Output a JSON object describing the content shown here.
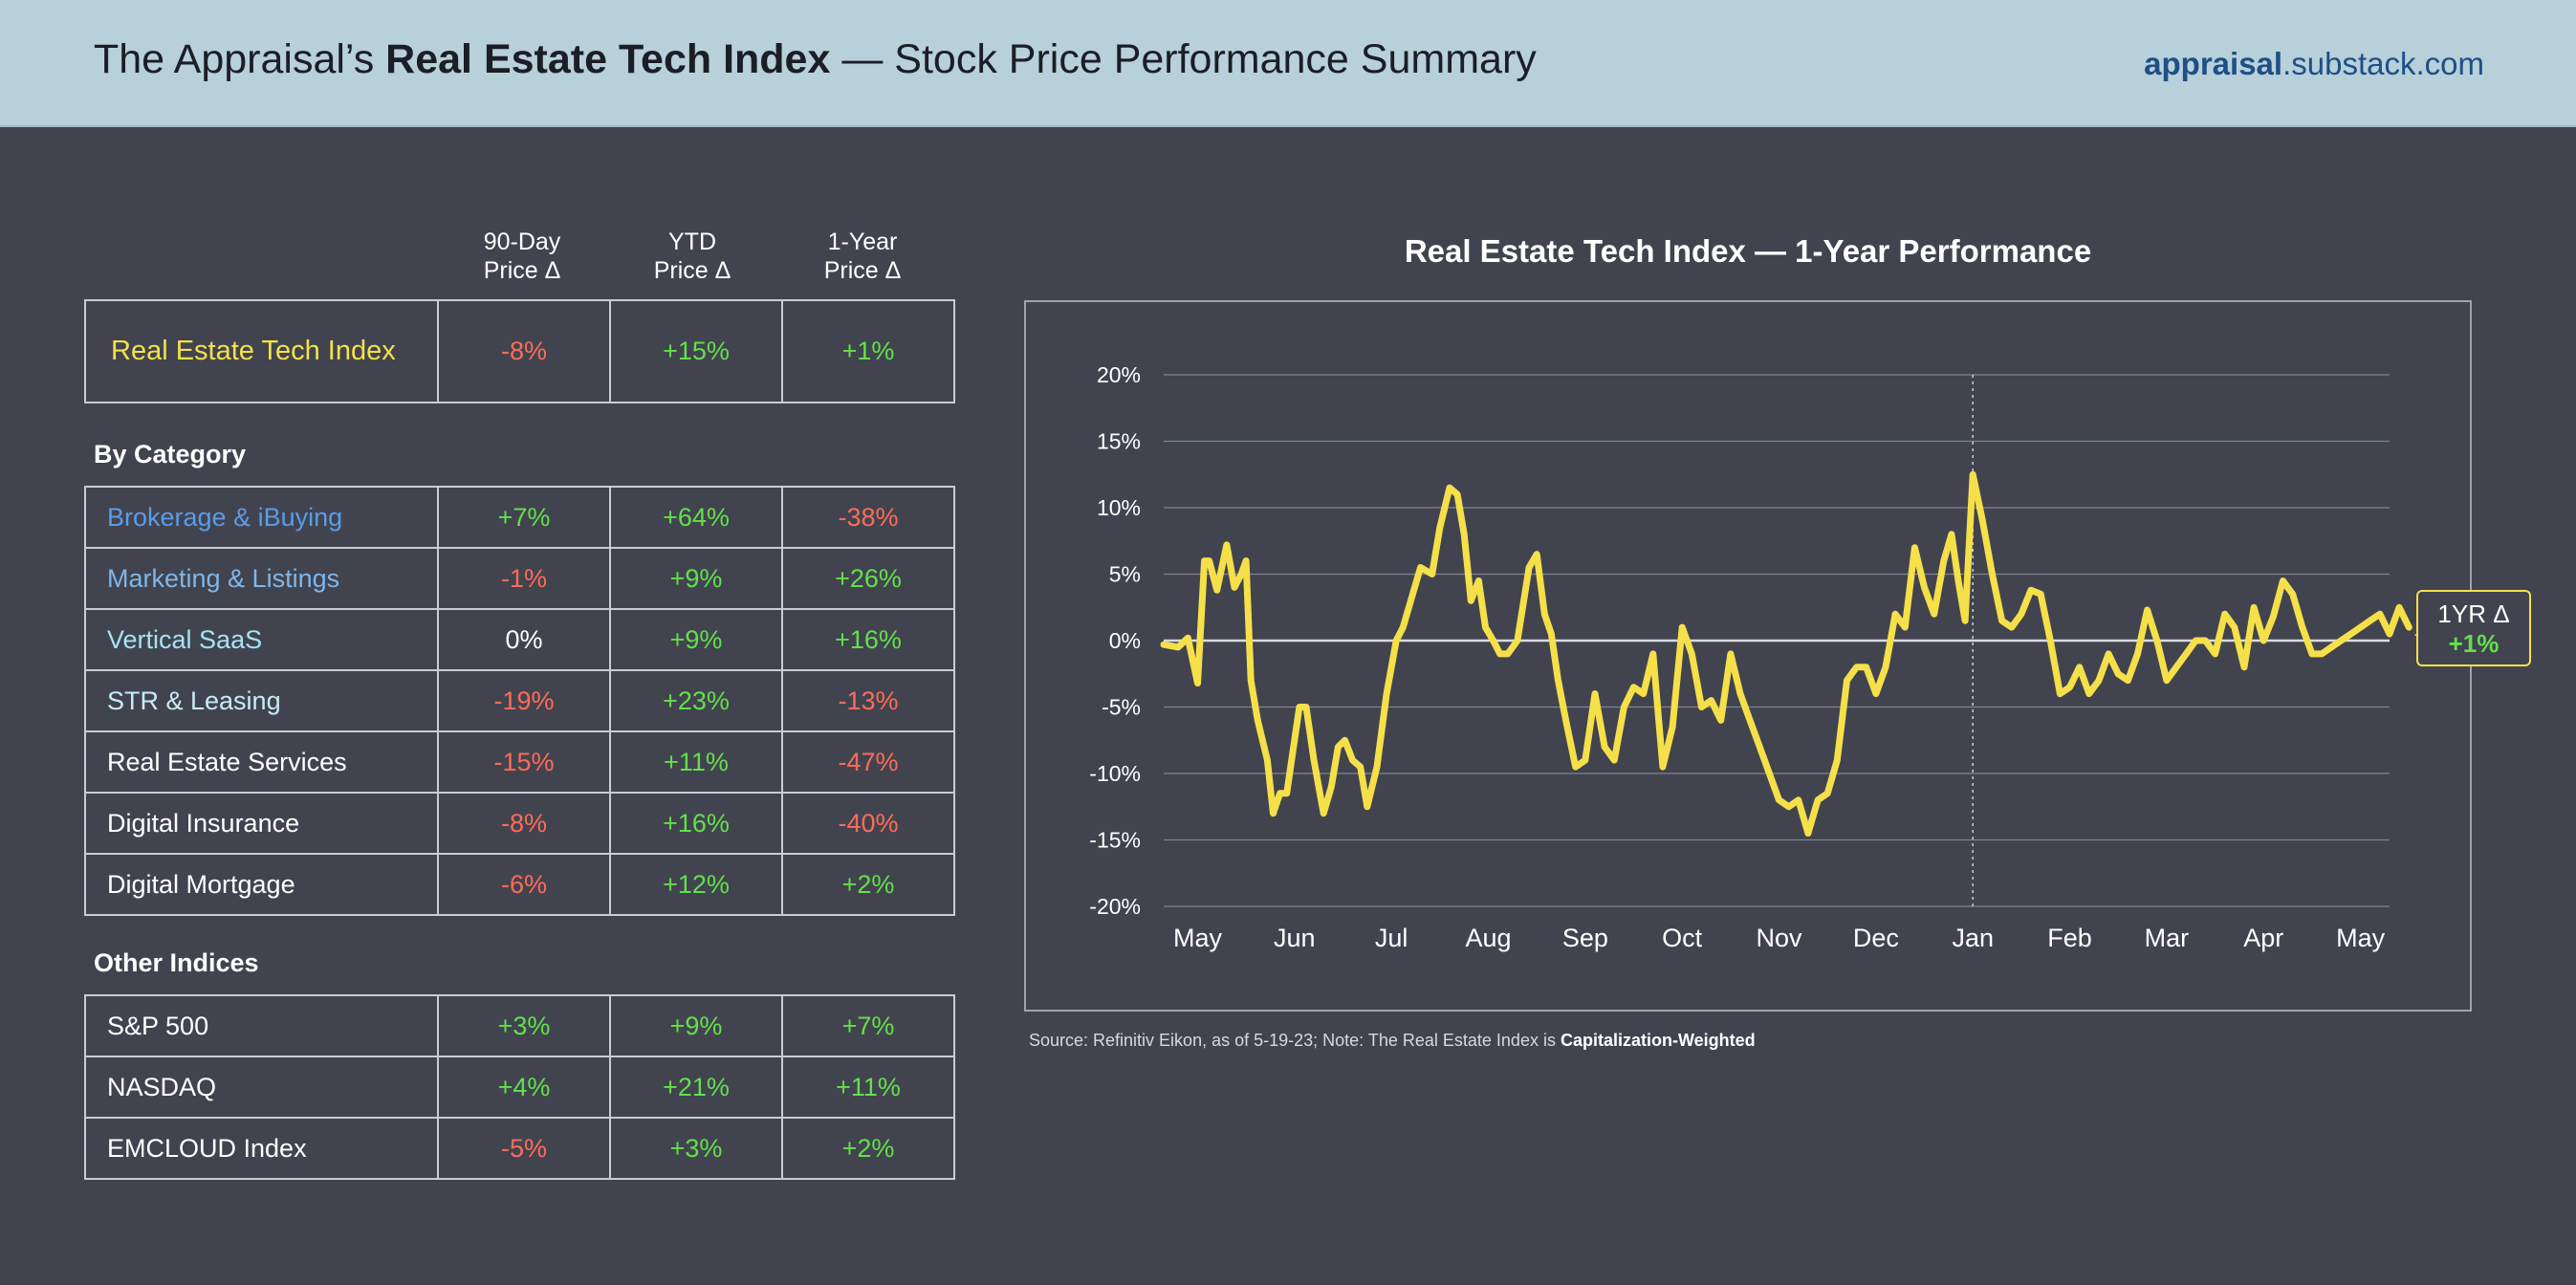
{
  "header": {
    "title_prefix": "The Appraisal’s ",
    "title_bold": "Real Estate Tech Index",
    "title_suffix": " — Stock Price Performance Summary",
    "brand_bold": "appraisal",
    "brand_rest": ".substack.com"
  },
  "table": {
    "columns": [
      {
        "line1": "90-Day",
        "line2": "Price Δ"
      },
      {
        "line1": "YTD",
        "line2": "Price Δ"
      },
      {
        "line1": "1-Year",
        "line2": "Price Δ"
      }
    ],
    "index_row": {
      "name": "Real Estate Tech Index",
      "color": "#f5e04a",
      "values": [
        "-8%",
        "+15%",
        "+1%"
      ]
    },
    "by_category_label": "By Category",
    "categories": [
      {
        "name": "Brokerage & iBuying",
        "color": "#5b9ce8",
        "values": [
          "+7%",
          "+64%",
          "-38%"
        ]
      },
      {
        "name": "Marketing & Listings",
        "color": "#7fb6ea",
        "values": [
          "-1%",
          "+9%",
          "+26%"
        ]
      },
      {
        "name": "Vertical SaaS",
        "color": "#a6e3f2",
        "values": [
          "0%",
          "+9%",
          "+16%"
        ]
      },
      {
        "name": "STR & Leasing",
        "color": "#c7ecf5",
        "values": [
          "-19%",
          "+23%",
          "-13%"
        ]
      },
      {
        "name": "Real Estate Services",
        "color": "#ffffff",
        "values": [
          "-15%",
          "+11%",
          "-47%"
        ]
      },
      {
        "name": "Digital Insurance",
        "color": "#ffffff",
        "values": [
          "-8%",
          "+16%",
          "-40%"
        ]
      },
      {
        "name": "Digital Mortgage",
        "color": "#ffffff",
        "values": [
          "-6%",
          "+12%",
          "+2%"
        ]
      }
    ],
    "other_indices_label": "Other Indices",
    "other_indices": [
      {
        "name": "S&P 500",
        "color": "#ffffff",
        "values": [
          "+3%",
          "+9%",
          "+7%"
        ]
      },
      {
        "name": "NASDAQ",
        "color": "#ffffff",
        "values": [
          "+4%",
          "+21%",
          "+11%"
        ]
      },
      {
        "name": "EMCLOUD Index",
        "color": "#ffffff",
        "values": [
          "-5%",
          "+3%",
          "+2%"
        ]
      }
    ]
  },
  "colors": {
    "positive": "#63e04a",
    "negative": "#ff6b57",
    "neutral": "#ffffff",
    "line": "#f5e04a",
    "background": "#41444f",
    "header_bg": "#b8d0d9",
    "brand": "#1e4f86"
  },
  "chart_data": {
    "type": "line",
    "title": "Real Estate Tech Index — 1-Year Performance",
    "xlabel": "",
    "ylabel": "",
    "ylim": [
      -20,
      20
    ],
    "yticks": [
      "20%",
      "15%",
      "10%",
      "5%",
      "0%",
      "-5%",
      "-10%",
      "-15%",
      "-20%"
    ],
    "xticks": [
      "May",
      "Jun",
      "Jul",
      "Aug",
      "Sep",
      "Oct",
      "Nov",
      "Dec",
      "Jan",
      "Feb",
      "Mar",
      "Apr",
      "May"
    ],
    "grid": true,
    "year_divider": "Jan",
    "series": [
      {
        "color": "#f5e04a",
        "x": [
          -0.35,
          -0.2,
          -0.1,
          0.0,
          0.07,
          0.12,
          0.2,
          0.3,
          0.38,
          0.45,
          0.5,
          0.55,
          0.62,
          0.72,
          0.78,
          0.85,
          0.92,
          1.0,
          1.05,
          1.12,
          1.2,
          1.3,
          1.38,
          1.45,
          1.52,
          1.6,
          1.68,
          1.75,
          1.85,
          1.95,
          2.05,
          2.12,
          2.2,
          2.3,
          2.42,
          2.5,
          2.6,
          2.68,
          2.75,
          2.82,
          2.9,
          2.97,
          3.05,
          3.12,
          3.2,
          3.3,
          3.42,
          3.5,
          3.58,
          3.65,
          3.72,
          3.8,
          3.9,
          4.0,
          4.1,
          4.2,
          4.3,
          4.4,
          4.5,
          4.6,
          4.7,
          4.8,
          4.9,
          5.0,
          5.1,
          5.2,
          5.3,
          5.4,
          5.5,
          5.6,
          5.7,
          5.8,
          5.9,
          6.0,
          6.1,
          6.2,
          6.3,
          6.4,
          6.5,
          6.6,
          6.7,
          6.8,
          6.9,
          7.0,
          7.1,
          7.2,
          7.3,
          7.4,
          7.5,
          7.6,
          7.7,
          7.78,
          7.85,
          7.92,
          8.0,
          8.1,
          8.2,
          8.3,
          8.4,
          8.5,
          8.6,
          8.7,
          8.8,
          8.9,
          9.0,
          9.1,
          9.2,
          9.3,
          9.4,
          9.5,
          9.6,
          9.7,
          9.8,
          9.9,
          10.0,
          10.1,
          10.2,
          10.3,
          10.4,
          10.5,
          10.6,
          10.7,
          10.8,
          10.9,
          11.0,
          11.1,
          11.2,
          11.3,
          11.4,
          11.5,
          11.6,
          11.7,
          11.8,
          11.9,
          12.0,
          12.1,
          12.2,
          12.3,
          12.4,
          12.5
        ],
        "values": [
          -0.3,
          -0.5,
          0.2,
          -3.2,
          6.0,
          6.0,
          3.8,
          7.2,
          4.0,
          5.0,
          6.0,
          -3.0,
          -6.0,
          -9.0,
          -13.0,
          -11.5,
          -11.5,
          -7.5,
          -5.0,
          -5.0,
          -9.0,
          -13.0,
          -11.0,
          -8.0,
          -7.5,
          -9.0,
          -9.5,
          -12.5,
          -9.5,
          -4.0,
          0.0,
          1.0,
          3.0,
          5.5,
          5.0,
          8.5,
          11.5,
          11.0,
          8.0,
          3.0,
          4.5,
          1.0,
          0.0,
          -1.0,
          -1.0,
          0.0,
          5.5,
          6.5,
          2.0,
          0.5,
          -3.0,
          -6.0,
          -9.5,
          -9.0,
          -4.0,
          -8.0,
          -9.0,
          -5.0,
          -3.5,
          -4.0,
          -1.0,
          -9.5,
          -6.5,
          1.0,
          -1.0,
          -5.0,
          -4.5,
          -6.0,
          -1.0,
          -4.0,
          -6.0,
          -8.0,
          -10.0,
          -12.0,
          -12.5,
          -12.0,
          -14.5,
          -12.0,
          -11.5,
          -9.0,
          -3.0,
          -2.0,
          -2.0,
          -4.0,
          -2.0,
          2.0,
          1.0,
          7.0,
          4.0,
          2.0,
          6.0,
          8.0,
          4.5,
          1.5,
          12.5,
          9.0,
          5.0,
          1.5,
          1.0,
          2.0,
          3.8,
          3.5,
          0.0,
          -4.0,
          -3.5,
          -2.0,
          -4.0,
          -3.0,
          -1.0,
          -2.5,
          -3.0,
          -1.0,
          2.3,
          0.0,
          -3.0,
          -2.0,
          -1.0,
          0.0,
          0.0,
          -1.0,
          2.0,
          1.0,
          -2.0,
          2.5,
          0.0,
          1.8,
          4.5,
          3.5,
          1.0,
          -1.0,
          -1.0,
          -0.5,
          0.0,
          0.5,
          1.0,
          1.5,
          2.0,
          0.5,
          2.5,
          1.0
        ]
      }
    ],
    "callout": {
      "label": "1YR Δ",
      "value": "+1%"
    }
  },
  "source": {
    "text": "Source: Refinitiv Eikon, as of 5-19-23; Note: The Real Estate Index is ",
    "bold": "Capitalization-Weighted"
  }
}
